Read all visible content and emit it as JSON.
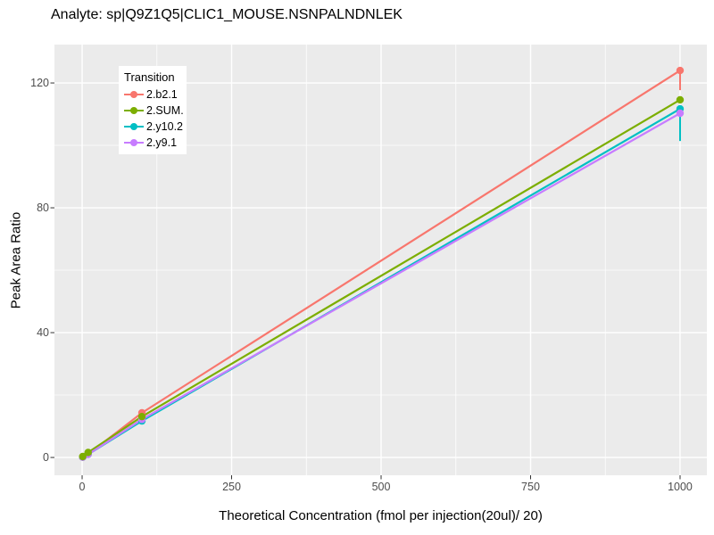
{
  "title": "Analyte: sp|Q9Z1Q5|CLIC1_MOUSE.NSNPALNDNLEK",
  "colors": {
    "panel_background": "#EBEBEB",
    "grid": "#FFFFFF",
    "tick_mark": "#333333",
    "tick_label": "#4D4D4D",
    "text": "#000000"
  },
  "chart_data": {
    "type": "line",
    "title": "Analyte: sp|Q9Z1Q5|CLIC1_MOUSE.NSNPALNDNLEK",
    "xlabel": "Theoretical Concentration (fmol per injection(20ul)/ 20)",
    "ylabel": "Peak Area Ratio",
    "x_ticks": [
      0,
      250,
      500,
      750,
      1000
    ],
    "x_tick_labels": [
      "0",
      "250",
      "500",
      "750",
      "1000"
    ],
    "x_minor_ticks": [
      125,
      375,
      625,
      875
    ],
    "y_ticks": [
      0,
      40,
      80,
      120
    ],
    "y_tick_labels": [
      "0",
      "40",
      "80",
      "120"
    ],
    "y_minor_ticks": [
      20,
      60,
      100
    ],
    "xlim": [
      -46.3,
      1044.8
    ],
    "ylim": [
      -5.7,
      132.3
    ],
    "grid": "white major and minor gridlines on gray panel",
    "legend": {
      "title": "Transition",
      "position": "top-left inset"
    },
    "x": [
      1,
      10,
      100,
      1000
    ],
    "series": [
      {
        "name": "2.b2.1",
        "color": "#F8766D",
        "values": [
          0.1,
          1.0,
          14.3,
          124.0
        ]
      },
      {
        "name": "2.SUM.",
        "color": "#7CAE00",
        "values": [
          0.3,
          1.6,
          13.1,
          114.6
        ]
      },
      {
        "name": "2.y10.2",
        "color": "#00BFC4",
        "values": [
          0.1,
          1.0,
          11.7,
          111.7
        ]
      },
      {
        "name": "2.y9.1",
        "color": "#C77CFF",
        "values": [
          0.1,
          1.0,
          12.2,
          110.3
        ]
      }
    ],
    "error_bars": [
      {
        "series": "2.b2.1",
        "x": 1000,
        "ymin": 117.7,
        "ymax": 124.6
      },
      {
        "series": "2.y10.2",
        "x": 1000,
        "ymin": 101.4,
        "ymax": 112.3
      }
    ]
  }
}
